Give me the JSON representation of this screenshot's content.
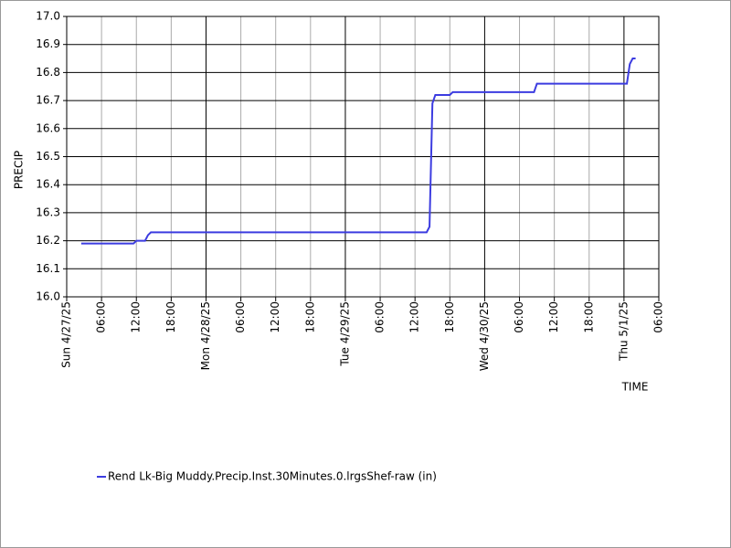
{
  "chart_data": {
    "type": "line",
    "x_label": "TIME",
    "y_label": "PRECIP",
    "x": [
      "2025-04-27T02:30",
      "2025-04-27T11:30",
      "2025-04-27T12:00",
      "2025-04-27T13:30",
      "2025-04-27T14:00",
      "2025-04-27T14:30",
      "2025-04-29T14:00",
      "2025-04-29T14:30",
      "2025-04-29T15:00",
      "2025-04-29T15:30",
      "2025-04-29T18:00",
      "2025-04-29T18:30",
      "2025-04-30T08:30",
      "2025-04-30T09:00",
      "2025-05-01T00:30",
      "2025-05-01T01:00",
      "2025-05-01T01:30",
      "2025-05-01T02:00"
    ],
    "series": [
      {
        "name": "Rend Lk-Big Muddy.Precip.Inst.30Minutes.0.lrgsShef-raw (in)",
        "color": "#3c3ce0",
        "values": [
          16.19,
          16.19,
          16.2,
          16.2,
          16.22,
          16.23,
          16.23,
          16.25,
          16.69,
          16.72,
          16.72,
          16.73,
          16.73,
          16.76,
          16.76,
          16.83,
          16.85,
          16.85
        ]
      }
    ],
    "xlim": [
      "2025-04-27T00:00",
      "2025-05-01T06:00"
    ],
    "xticks": [
      {
        "value": "2025-04-27T00:00",
        "label": "Sun 4/27/25"
      },
      {
        "value": "2025-04-27T06:00",
        "label": "06:00"
      },
      {
        "value": "2025-04-27T12:00",
        "label": "12:00"
      },
      {
        "value": "2025-04-27T18:00",
        "label": "18:00"
      },
      {
        "value": "2025-04-28T00:00",
        "label": "Mon 4/28/25"
      },
      {
        "value": "2025-04-28T06:00",
        "label": "06:00"
      },
      {
        "value": "2025-04-28T12:00",
        "label": "12:00"
      },
      {
        "value": "2025-04-28T18:00",
        "label": "18:00"
      },
      {
        "value": "2025-04-29T00:00",
        "label": "Tue 4/29/25"
      },
      {
        "value": "2025-04-29T06:00",
        "label": "06:00"
      },
      {
        "value": "2025-04-29T12:00",
        "label": "12:00"
      },
      {
        "value": "2025-04-29T18:00",
        "label": "18:00"
      },
      {
        "value": "2025-04-30T00:00",
        "label": "Wed 4/30/25"
      },
      {
        "value": "2025-04-30T06:00",
        "label": "06:00"
      },
      {
        "value": "2025-04-30T12:00",
        "label": "12:00"
      },
      {
        "value": "2025-04-30T18:00",
        "label": "18:00"
      },
      {
        "value": "2025-05-01T00:00",
        "label": "Thu 5/1/25"
      },
      {
        "value": "2025-05-01T06:00",
        "label": "06:00"
      }
    ],
    "ylim": [
      16.0,
      17.0
    ],
    "yticks": [
      {
        "value": 16.0,
        "label": "16.0"
      },
      16.1,
      16.2,
      16.3,
      16.4,
      16.5,
      16.6,
      16.7,
      16.8,
      16.9,
      {
        "value": 17.0,
        "label": "17.0"
      }
    ],
    "grid": true,
    "legend": "bottom"
  }
}
